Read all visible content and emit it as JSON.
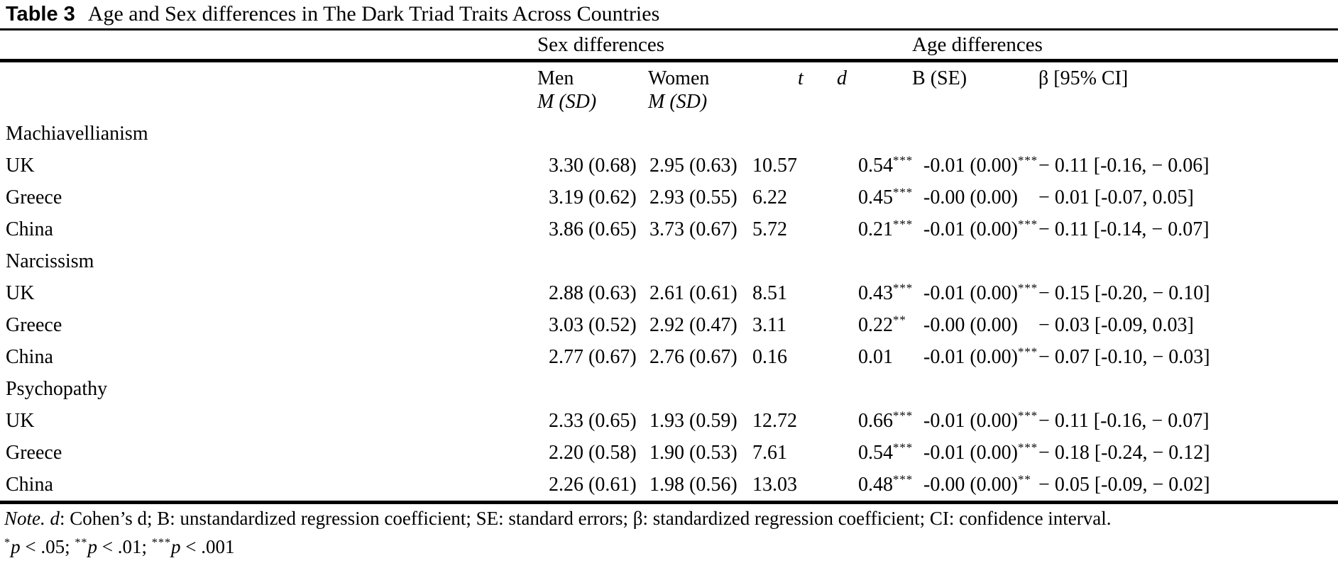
{
  "title": {
    "label": "Table 3",
    "text": "Age and Sex differences in The Dark Triad Traits Across Countries"
  },
  "table": {
    "group_headers": {
      "sex": "Sex differences",
      "age": "Age differences"
    },
    "columns": {
      "men_line1": "Men",
      "men_line2": "M (SD)",
      "women_line1": "Women",
      "women_line2": "M (SD)",
      "t": "t",
      "d": "d",
      "b": "B (SE)",
      "beta": "β [95% CI]"
    },
    "rows": [
      {
        "type": "section",
        "label": "Machiavellianism"
      },
      {
        "type": "data",
        "label": "UK",
        "men": "3.30 (0.68)",
        "women": "2.95 (0.63)",
        "t": "10.57",
        "d": "0.54",
        "d_stars": "***",
        "b": "-0.01 (0.00)",
        "b_stars": "***",
        "beta": "− 0.11 [-0.16, − 0.06]"
      },
      {
        "type": "data",
        "label": "Greece",
        "men": "3.19 (0.62)",
        "women": "2.93 (0.55)",
        "t": "6.22",
        "d": "0.45",
        "d_stars": "***",
        "b": "-0.00 (0.00)",
        "b_stars": "",
        "beta": "− 0.01 [-0.07, 0.05]"
      },
      {
        "type": "data",
        "label": "China",
        "men": "3.86 (0.65)",
        "women": "3.73 (0.67)",
        "t": "5.72",
        "d": "0.21",
        "d_stars": "***",
        "b": "-0.01 (0.00)",
        "b_stars": "***",
        "beta": "− 0.11 [-0.14, − 0.07]"
      },
      {
        "type": "section",
        "label": "Narcissism"
      },
      {
        "type": "data",
        "label": "UK",
        "men": "2.88 (0.63)",
        "women": "2.61 (0.61)",
        "t": "8.51",
        "d": "0.43",
        "d_stars": "***",
        "b": "-0.01 (0.00)",
        "b_stars": "***",
        "beta": "− 0.15 [-0.20, − 0.10]"
      },
      {
        "type": "data",
        "label": "Greece",
        "men": "3.03 (0.52)",
        "women": "2.92 (0.47)",
        "t": "3.11",
        "d": "0.22",
        "d_stars": "**",
        "b": "-0.00 (0.00)",
        "b_stars": "",
        "beta": "− 0.03 [-0.09, 0.03]"
      },
      {
        "type": "data",
        "label": "China",
        "men": "2.77 (0.67)",
        "women": "2.76 (0.67)",
        "t": "0.16",
        "d": "0.01",
        "d_stars": "",
        "b": "-0.01 (0.00)",
        "b_stars": "***",
        "beta": "− 0.07 [-0.10, − 0.03]"
      },
      {
        "type": "section",
        "label": "Psychopathy"
      },
      {
        "type": "data",
        "label": "UK",
        "men": "2.33 (0.65)",
        "women": "1.93 (0.59)",
        "t": "12.72",
        "d": "0.66",
        "d_stars": "***",
        "b": "-0.01 (0.00)",
        "b_stars": "***",
        "beta": "− 0.11 [-0.16, − 0.07]"
      },
      {
        "type": "data",
        "label": "Greece",
        "men": "2.20 (0.58)",
        "women": "1.90 (0.53)",
        "t": "7.61",
        "d": "0.54",
        "d_stars": "***",
        "b": "-0.01 (0.00)",
        "b_stars": "***",
        "beta": "− 0.18 [-0.24, − 0.12]"
      },
      {
        "type": "data",
        "label": "China",
        "men": "2.26 (0.61)",
        "women": "1.98 (0.56)",
        "t": "13.03",
        "d": "0.48",
        "d_stars": "***",
        "b": "-0.00 (0.00)",
        "b_stars": "**",
        "beta": "− 0.05 [-0.09, − 0.02]"
      }
    ]
  },
  "note": {
    "lead": "Note.",
    "d_symbol": "d",
    "rest": ": Cohen’s d; B: unstandardized regression coefficient; SE: standard errors; β: standardized regression coefficient; CI: confidence interval.",
    "sig_levels": [
      {
        "stars": "*",
        "p": "p",
        "text": " < .05; "
      },
      {
        "stars": "**",
        "p": "p",
        "text": " < .01; "
      },
      {
        "stars": "***",
        "p": "p",
        "text": " < .001"
      }
    ]
  }
}
